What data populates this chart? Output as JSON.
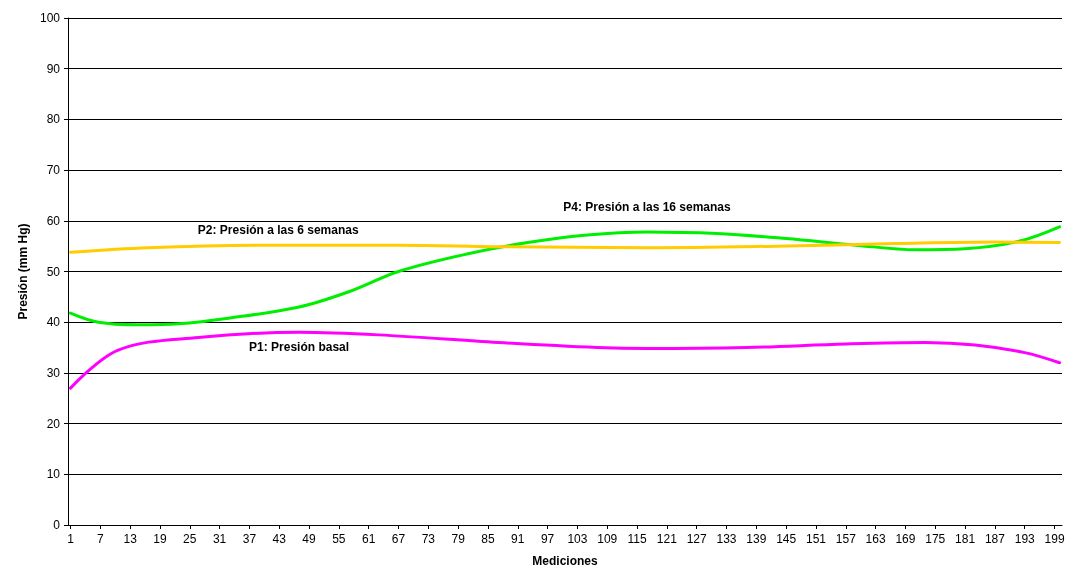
{
  "chart_data": {
    "type": "line",
    "xlabel": "Mediciones",
    "ylabel": "Presión (mm Hg)",
    "xlim": [
      0.5,
      200.5
    ],
    "xticks": [
      1,
      7,
      13,
      19,
      25,
      31,
      37,
      43,
      49,
      55,
      61,
      67,
      73,
      79,
      85,
      91,
      97,
      103,
      109,
      115,
      121,
      127,
      133,
      139,
      145,
      151,
      157,
      163,
      169,
      175,
      181,
      187,
      193,
      199
    ],
    "ylim": [
      0,
      100
    ],
    "yticks": [
      0,
      10,
      20,
      30,
      40,
      50,
      60,
      70,
      80,
      90,
      100
    ],
    "grid": "y",
    "marker": "none",
    "line_style": "solid",
    "series": [
      {
        "name": "P1: Presión basal",
        "color": "#ff00ff",
        "x": [
          1,
          10.6,
          26.7,
          47,
          63,
          87,
          107,
          117,
          137,
          157,
          173,
          183,
          193,
          200
        ],
        "values": [
          27,
          34.5,
          37,
          38,
          37.5,
          36,
          35,
          34.8,
          35,
          35.7,
          36,
          35.5,
          34,
          32
        ]
      },
      {
        "name": "P4: Presión a las 16 semanas",
        "color": "#00ee00",
        "x": [
          1,
          6.6,
          14.7,
          22.7,
          32.8,
          47,
          57,
          67,
          81,
          93,
          105,
          117,
          131,
          145,
          159,
          171,
          181,
          192,
          200
        ],
        "values": [
          41.8,
          40,
          39.5,
          39.7,
          40.8,
          43,
          46,
          50,
          53.5,
          55.7,
          57.2,
          57.8,
          57.5,
          56.5,
          55.2,
          54.3,
          54.5,
          56,
          58.8
        ]
      },
      {
        "name": "P2: Presión a las 6 semanas",
        "color": "#ffcc00",
        "x": [
          1,
          16.7,
          42.8,
          67,
          87,
          117,
          143,
          167,
          187,
          200
        ],
        "values": [
          53.8,
          54.7,
          55.2,
          55.2,
          54.9,
          54.7,
          55,
          55.5,
          55.8,
          55.7
        ]
      }
    ]
  }
}
